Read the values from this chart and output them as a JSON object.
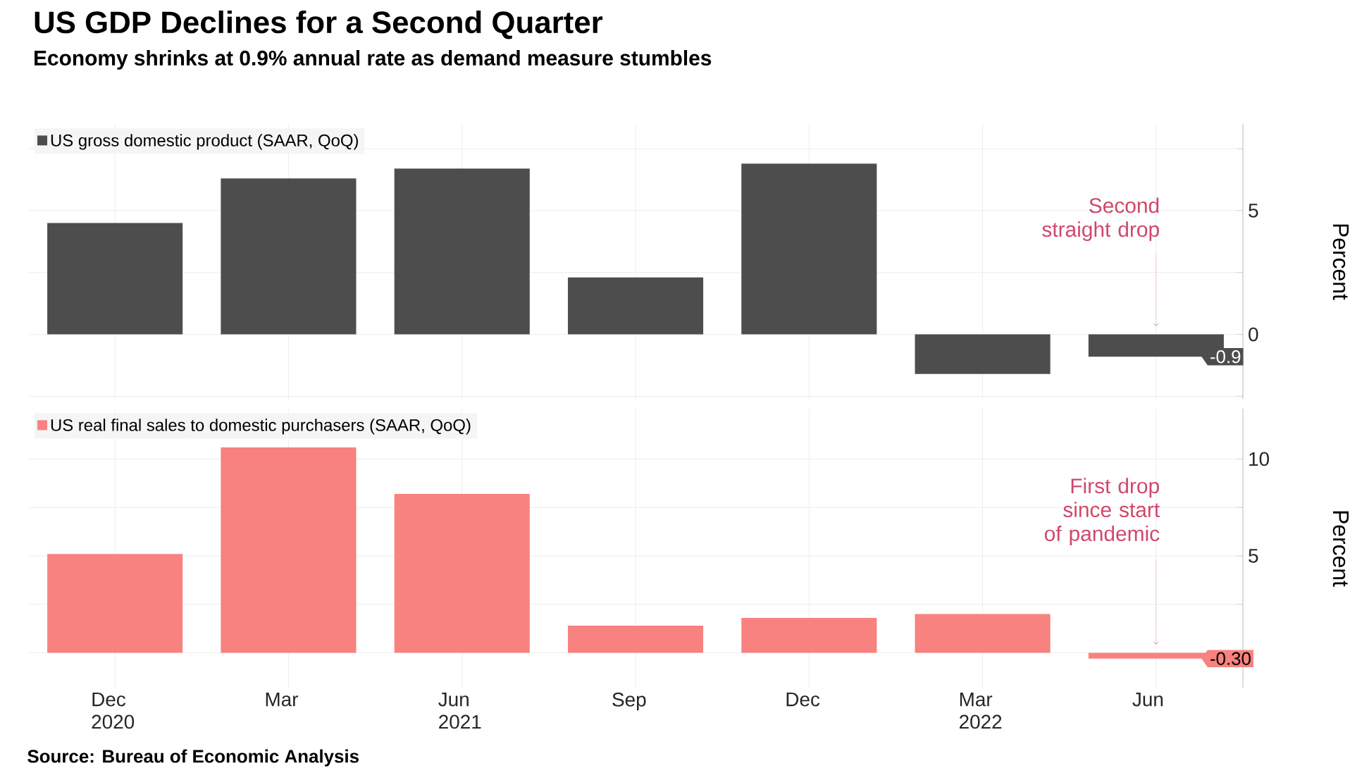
{
  "chart_data": [
    {
      "type": "bar",
      "title": "US GDP Declines for a Second Quarter",
      "subtitle": "Economy shrinks at 0.9% annual rate as demand measure stumbles",
      "categories": [
        null,
        null,
        null,
        null,
        null,
        null,
        null
      ],
      "series": [
        {
          "name": "US gross domestic product (SAAR, QoQ)",
          "color": "#4d4d4d",
          "values": [
            4.5,
            6.3,
            6.7,
            2.3,
            6.9,
            -1.6,
            -0.9
          ],
          "value_labels": [
            null,
            null,
            null,
            null,
            null,
            null,
            "-0.9"
          ]
        }
      ],
      "ylim": [
        -2.6,
        8.5
      ],
      "yticks": [
        {
          "value": -2.5,
          "label": null
        },
        0,
        {
          "value": 2.5,
          "label": null
        },
        5,
        {
          "value": 7.5,
          "label": null
        }
      ],
      "ylabel": "Percent",
      "grid": true,
      "legend": "top left",
      "tick_labels": "y",
      "annotations": [
        "Second straight drop"
      ]
    },
    {
      "type": "bar",
      "categories": [
        "Dec 2020",
        "Mar",
        "Jun 2021",
        "Sep",
        "Dec",
        "Mar 2022",
        "Jun"
      ],
      "series": [
        {
          "name": "US real final sales to domestic purchasers (SAAR, QoQ)",
          "color": "#f7827f",
          "values": [
            5.1,
            10.6,
            8.2,
            1.4,
            1.8,
            2.0,
            -0.3
          ],
          "value_labels": [
            null,
            null,
            null,
            null,
            null,
            null,
            "-0.30"
          ]
        }
      ],
      "ylim": [
        -1.8,
        12.6
      ],
      "yticks": [
        {
          "value": 0,
          "label": null
        },
        {
          "value": 2.5,
          "label": null
        },
        5,
        {
          "value": 7.5,
          "label": null
        },
        10
      ],
      "ylabel": "Percent",
      "grid": true,
      "legend": "top left",
      "annotations": [
        "First drop since start of pandemic",
        "Source: Bureau of Economic Analysis"
      ]
    }
  ]
}
